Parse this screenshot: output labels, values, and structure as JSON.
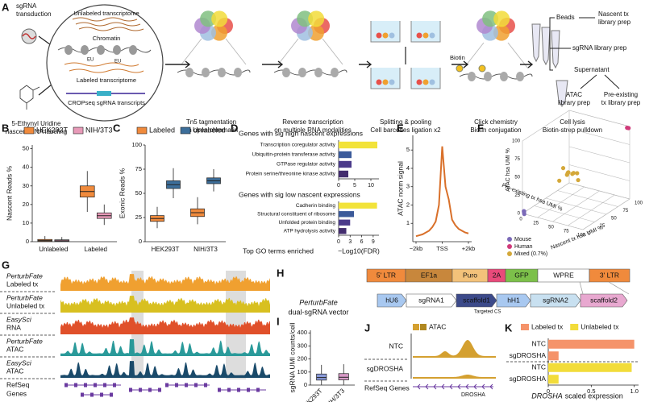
{
  "panel_labels": [
    "A",
    "B",
    "C",
    "D",
    "E",
    "F",
    "G",
    "H",
    "I",
    "J",
    "K"
  ],
  "schematic": {
    "transduction": [
      "sgRNA",
      "transduction"
    ],
    "labeling": [
      "5-Ethynyl Uridine",
      "nascent RNA labeling"
    ],
    "unlabeled": "Unlabeled transcriptome",
    "chromatin": "Chromatin",
    "labeled": "Labeled transcriptome",
    "cropseq": "CROPseq sgRNA transcripts",
    "eu": "EU",
    "steps": [
      [
        "Tn5 tagmentation",
        "on open chromatin"
      ],
      [
        "Reverse transcription",
        "on multiple RNA modalities"
      ],
      [
        "Splitting & pooling",
        "Cell barcodes ligation x2"
      ],
      [
        "Click chemistry",
        "Biotin conjugation"
      ],
      [
        "Cell lysis",
        "Biotin-strep pulldown"
      ]
    ],
    "biotin": "Biotin",
    "beads": "Beads",
    "nascent": [
      "Nascent tx",
      "library prep"
    ],
    "sgrna": "sgRNA library prep",
    "supernatant": "Supernatant",
    "atac": [
      "ATAC",
      "library prep"
    ],
    "preexisting": [
      "Pre-existing",
      "tx library prep"
    ]
  },
  "chart_data": [
    {
      "type": "box",
      "ylabel": "Nascent Reads %",
      "categories": [
        "Unlabeled",
        "Labeled"
      ],
      "ylim": [
        0,
        52
      ],
      "yticks": [
        0,
        10,
        20,
        30,
        40,
        50
      ],
      "series": [
        {
          "name": "HEK293T",
          "color": "#f08a3c",
          "whisker_low": [
            0,
            16
          ],
          "q1": [
            0.2,
            24
          ],
          "median": [
            0.6,
            27
          ],
          "q3": [
            1.2,
            30
          ],
          "whisker_high": [
            3,
            38
          ]
        },
        {
          "name": "NIH/3T3",
          "color": "#e89ab8",
          "whisker_low": [
            0,
            9
          ],
          "q1": [
            0.2,
            12.5
          ],
          "median": [
            0.5,
            14
          ],
          "q3": [
            1,
            15.5
          ],
          "whisker_high": [
            2.5,
            20
          ]
        }
      ]
    },
    {
      "type": "box",
      "ylabel": "Exonic Reads %",
      "categories": [
        "HEK293T",
        "NIH/3T3"
      ],
      "ylim": [
        0,
        100
      ],
      "yticks": [
        0,
        25,
        50,
        75,
        100
      ],
      "series": [
        {
          "name": "Labeled",
          "color": "#f08a3c",
          "whisker_low": [
            14,
            18
          ],
          "q1": [
            21,
            26
          ],
          "median": [
            24,
            30
          ],
          "q3": [
            27,
            34
          ],
          "whisker_high": [
            36,
            46
          ]
        },
        {
          "name": "Unlabeled",
          "color": "#3c6e9a",
          "whisker_low": [
            45,
            52
          ],
          "q1": [
            55,
            60
          ],
          "median": [
            59,
            63
          ],
          "q3": [
            63,
            66
          ],
          "whisker_high": [
            76,
            75
          ]
        }
      ]
    },
    {
      "type": "hbar",
      "title": "Genes with sig high nascent expressions",
      "categories": [
        "Transcription coregulator activity",
        "Ubiquitin-protein transferase activity",
        "GTPase regulator activity",
        "Protein serine/threonine kinase activity"
      ],
      "values": [
        12,
        4,
        4,
        3
      ],
      "colors": [
        "#f2e33a",
        "#3b5a9a",
        "#4b3a8a",
        "#432d6e"
      ],
      "xlim": [
        0,
        12.5
      ],
      "xticks": [
        0,
        5,
        10
      ]
    },
    {
      "type": "hbar",
      "title": "Genes with sig low nascent expressions",
      "categories": [
        "Cadherin binding",
        "Structural constituent of ribosome",
        "Unfolded protein binding",
        "ATP hydrolysis activity"
      ],
      "values": [
        10,
        4,
        3,
        2
      ],
      "colors": [
        "#f2e33a",
        "#3b5a9a",
        "#4b3a8a",
        "#432d6e"
      ],
      "xlim": [
        0,
        10.5
      ],
      "xticks": [
        0,
        3,
        6,
        9
      ],
      "xlabel": "−Log10(FDR)",
      "ylabel": "Top GO terms enriched"
    },
    {
      "type": "line",
      "ylabel": "ATAC norm signal",
      "x": [
        -2000,
        -1750,
        -1500,
        -1250,
        -1000,
        -750,
        -500,
        -250,
        0,
        250,
        500,
        750,
        1000,
        1250,
        1500,
        1750,
        2000
      ],
      "values": [
        0.3,
        0.35,
        0.4,
        0.5,
        0.6,
        0.8,
        1.1,
        2.0,
        5.2,
        3.0,
        2.3,
        1.2,
        0.9,
        0.7,
        0.6,
        0.5,
        0.45
      ],
      "color": "#d9702a",
      "xlim": [
        -2000,
        2000
      ],
      "xticks": [
        {
          "value": -2000,
          "label": "−2kb"
        },
        {
          "value": 0,
          "label": "TSS"
        },
        {
          "value": 2000,
          "label": "+2kb"
        }
      ],
      "ylim": [
        0,
        5.8
      ],
      "yticks": [
        1,
        2,
        3,
        4,
        5
      ]
    },
    {
      "type": "scatter3d",
      "xlabel": "Nascent tx hsa UMI %",
      "ylabel": "Pre-existing tx hsa UMI %",
      "zlabel": "ATAC hsa UMI %",
      "lim": [
        0,
        100
      ],
      "ticks": [
        0,
        25,
        50,
        75,
        100
      ],
      "series": [
        {
          "name": "Mouse",
          "color": "#7b6ab8",
          "x": [
            1,
            2,
            0,
            3
          ],
          "y": [
            2,
            1,
            3,
            0
          ],
          "z": [
            1,
            3,
            2,
            0
          ]
        },
        {
          "name": "Human",
          "color": "#d03a7a",
          "x": [
            99,
            98
          ],
          "y": [
            99,
            97
          ],
          "z": [
            98,
            99
          ]
        },
        {
          "name": "Mixed (0.7%)",
          "color": "#d4a83a",
          "x": [
            40,
            45,
            35,
            50,
            42,
            38,
            55,
            48,
            30,
            44
          ],
          "y": [
            45,
            40,
            50,
            42,
            55,
            38,
            48,
            35,
            40,
            60
          ],
          "z": [
            45,
            50,
            40,
            48,
            42,
            55,
            38,
            52,
            35,
            40
          ]
        }
      ]
    },
    {
      "type": "box",
      "ylabel": "sgRNA UMI counts/cell",
      "categories": [
        "HEK293T",
        "NIH/3T3"
      ],
      "ylim": [
        0,
        420
      ],
      "yticks": [
        0,
        100,
        200,
        300,
        400
      ],
      "colors": [
        "#8a9ad8",
        "#d89ac8"
      ],
      "whisker_low": [
        2,
        2
      ],
      "q1": [
        38,
        40
      ],
      "median": [
        58,
        60
      ],
      "q3": [
        85,
        88
      ],
      "whisker_high": [
        155,
        160
      ]
    },
    {
      "type": "hbar_grouped",
      "categories": [
        "NTC",
        "sgDROSHA",
        "NTC",
        "sgDROSHA"
      ],
      "series": [
        {
          "name": "Labeled tx",
          "color": "#f5936a",
          "values": [
            1,
            0.12,
            null,
            null
          ]
        },
        {
          "name": "Unlabeled tx",
          "color": "#f2dc3a",
          "values": [
            null,
            null,
            0.97,
            0.12
          ]
        }
      ],
      "xlim": [
        0,
        1.05
      ],
      "xticks": [
        0,
        0.5,
        {
          "value": 1,
          "label": "1.0"
        }
      ],
      "xlabel_gene": "DROSHA",
      "xlabel": "scaled expression"
    }
  ],
  "tracks_g": {
    "tracks": [
      {
        "source": "PerturbFate",
        "label": "Labeled tx",
        "color": "#f0a030"
      },
      {
        "source": "PerturbFate",
        "label": "Unlabeled tx",
        "color": "#d8c020"
      },
      {
        "source": "EasySci",
        "label": "RNA",
        "color": "#e0502a"
      },
      {
        "source": "PerturbFate",
        "label": "ATAC",
        "color": "#2a9a9a"
      },
      {
        "source": "EasySci",
        "label": "ATAC",
        "color": "#1a4a6a"
      }
    ],
    "genes": [
      "RefSeq",
      "Genes"
    ]
  },
  "vector": {
    "title": [
      "PerturbFate",
      "dual-sgRNA vector"
    ],
    "top": [
      {
        "label": "5' LTR",
        "color": "#f08a3c"
      },
      {
        "label": "EF1a",
        "color": "#c8873c"
      },
      {
        "label": "Puro",
        "color": "#f3c27a"
      },
      {
        "label": "2A",
        "color": "#e84a7a"
      },
      {
        "label": "GFP",
        "color": "#7cc04a"
      },
      {
        "label": "WPRE",
        "color": "#ffffff"
      },
      {
        "label": "3' LTR",
        "color": "#f08a3c"
      }
    ],
    "bottom": [
      {
        "label": "hU6",
        "color": "#a8c8f0"
      },
      {
        "label": "sgRNA1",
        "color": "#ffffff"
      },
      {
        "label": "scaffold1",
        "color": "#3c4a8a"
      },
      {
        "label": "hH1",
        "color": "#a8c8f0"
      },
      {
        "label": "sgRNA2",
        "color": "#c8e0f0"
      },
      {
        "label": "scaffold2",
        "color": "#e8a8d0"
      }
    ],
    "note": "Targeted CS"
  },
  "tracks_j": {
    "legend": "ATAC",
    "color": "#d4a030",
    "rows": [
      "NTC",
      "sgDROSHA"
    ],
    "genes": "RefSeq Genes",
    "gene": "DROSHA"
  }
}
